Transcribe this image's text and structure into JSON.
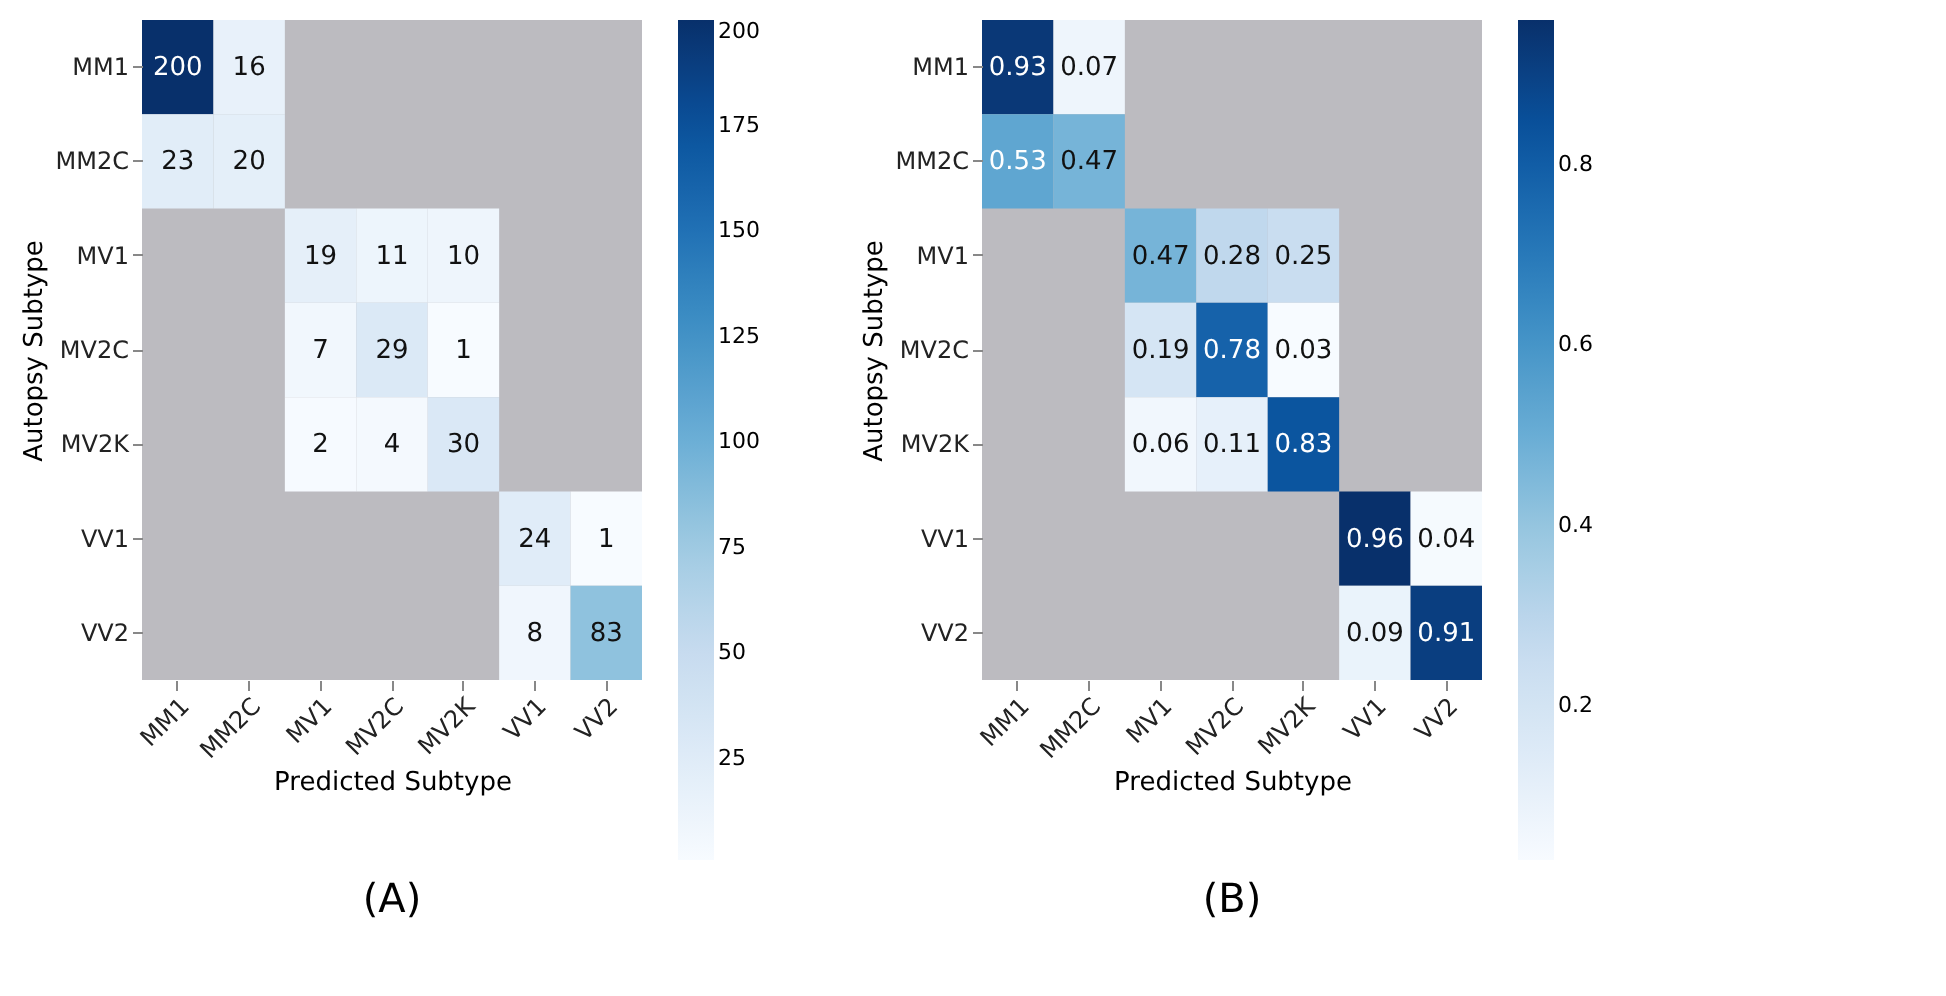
{
  "chart_data": [
    {
      "type": "heatmap",
      "title": "(A)",
      "xlabel": "Predicted Subtype",
      "ylabel": "Autopsy Subtype",
      "categories": [
        "MM1",
        "MM2C",
        "MV1",
        "MV2C",
        "MV2K",
        "VV1",
        "VV2"
      ],
      "y_categories": [
        "MM1",
        "MM2C",
        "MV1",
        "MV2C",
        "MV2K",
        "VV1",
        "VV2"
      ],
      "cells": [
        [
          200,
          16,
          null,
          null,
          null,
          null,
          null
        ],
        [
          23,
          20,
          null,
          null,
          null,
          null,
          null
        ],
        [
          null,
          null,
          19,
          11,
          10,
          null,
          null
        ],
        [
          null,
          null,
          7,
          29,
          1,
          null,
          null
        ],
        [
          null,
          null,
          2,
          4,
          30,
          null,
          null
        ],
        [
          null,
          null,
          null,
          null,
          null,
          24,
          1
        ],
        [
          null,
          null,
          null,
          null,
          null,
          8,
          83
        ]
      ],
      "clim": [
        1,
        200
      ],
      "cticks": [
        25,
        50,
        75,
        100,
        125,
        150,
        175,
        200
      ],
      "data_labels": true
    },
    {
      "type": "heatmap",
      "title": "(B)",
      "xlabel": "Predicted Subtype",
      "ylabel": "Autopsy Subtype",
      "categories": [
        "MM1",
        "MM2C",
        "MV1",
        "MV2C",
        "MV2K",
        "VV1",
        "VV2"
      ],
      "y_categories": [
        "MM1",
        "MM2C",
        "MV1",
        "MV2C",
        "MV2K",
        "VV1",
        "VV2"
      ],
      "cells": [
        [
          0.93,
          0.07,
          null,
          null,
          null,
          null,
          null
        ],
        [
          0.53,
          0.47,
          null,
          null,
          null,
          null,
          null
        ],
        [
          null,
          null,
          0.47,
          0.28,
          0.25,
          null,
          null
        ],
        [
          null,
          null,
          0.19,
          0.78,
          0.03,
          null,
          null
        ],
        [
          null,
          null,
          0.06,
          0.11,
          0.83,
          null,
          null
        ],
        [
          null,
          null,
          null,
          null,
          null,
          0.96,
          0.04
        ],
        [
          null,
          null,
          null,
          null,
          null,
          0.09,
          0.91
        ]
      ],
      "clim": [
        0.03,
        0.96
      ],
      "cticks": [
        0.2,
        0.4,
        0.6,
        0.8
      ],
      "data_labels": true
    }
  ]
}
